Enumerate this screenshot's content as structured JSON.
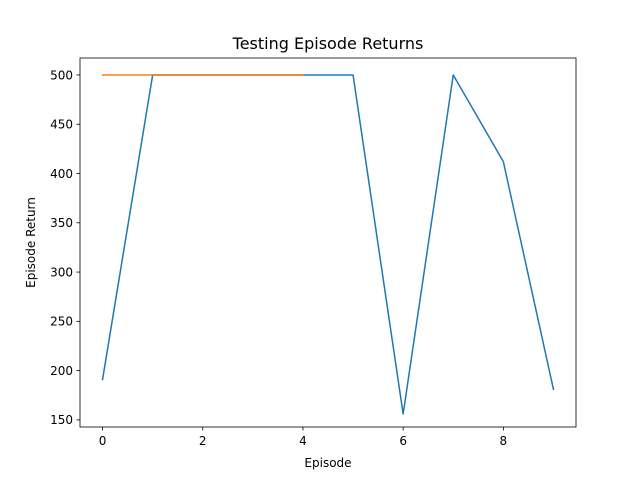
{
  "chart_data": {
    "type": "line",
    "title": "Testing Episode Returns",
    "xlabel": "Episode",
    "ylabel": "Episode Return",
    "xlim": [
      -0.45,
      9.45
    ],
    "ylim": [
      142.8,
      517.2
    ],
    "xticks": [
      "0",
      "2",
      "4",
      "6",
      "8"
    ],
    "yticks": [
      "150",
      "200",
      "250",
      "300",
      "350",
      "400",
      "450",
      "500"
    ],
    "xtick_values": [
      0,
      2,
      4,
      6,
      8
    ],
    "ytick_values": [
      150,
      200,
      250,
      300,
      350,
      400,
      450,
      500
    ],
    "grid": false,
    "legend": "none",
    "series": [
      {
        "color": "#1f77b4",
        "x": [
          0,
          1,
          2,
          3,
          4,
          5,
          6,
          7,
          8,
          9
        ],
        "y": [
          191,
          500,
          500,
          500,
          500,
          500,
          156,
          500,
          412,
          181
        ]
      },
      {
        "color": "#ff7f0e",
        "x": [
          0,
          1,
          2,
          3,
          4
        ],
        "y": [
          500,
          500,
          500,
          500,
          500
        ]
      }
    ]
  }
}
